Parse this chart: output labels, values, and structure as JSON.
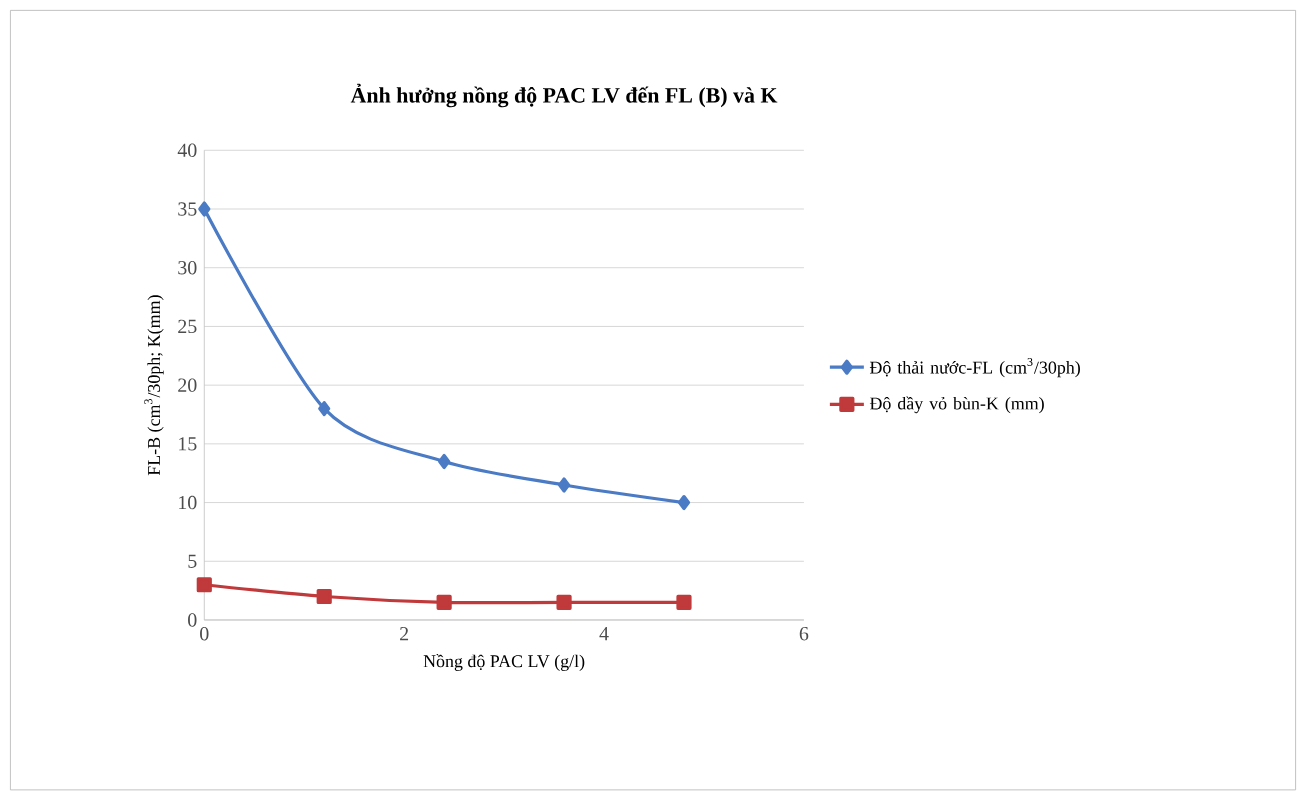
{
  "chart_data": {
    "type": "line",
    "title": "Ảnh hưởng nồng độ PAC LV đến FL (B) và K",
    "xlabel": "Nồng độ PAC LV  (g/l)",
    "ylabel": "FL-B (cm$^{3}$/30ph; K(mm)",
    "x": [
      0,
      1.2,
      2.4,
      3.6,
      4.8
    ],
    "series": [
      {
        "name": "Độ thải nước-FL (cm$^{3}$/30ph)",
        "color": "#4a7bc4",
        "marker": "diamond",
        "values": [
          35,
          18,
          13.5,
          11.5,
          10
        ]
      },
      {
        "name": "Độ dầy vỏ bùn-K (mm)",
        "color": "#c0393b",
        "marker": "square",
        "values": [
          3,
          2,
          1.5,
          1.5,
          1.5
        ]
      }
    ],
    "xlim": [
      0,
      6
    ],
    "xticks": [
      0,
      2,
      4,
      6
    ],
    "ylim": [
      0,
      40
    ],
    "yticks": [
      0,
      5,
      10,
      15,
      20,
      25,
      30,
      35,
      40
    ],
    "grid": "y",
    "legend": "right",
    "line_style": "solid"
  }
}
